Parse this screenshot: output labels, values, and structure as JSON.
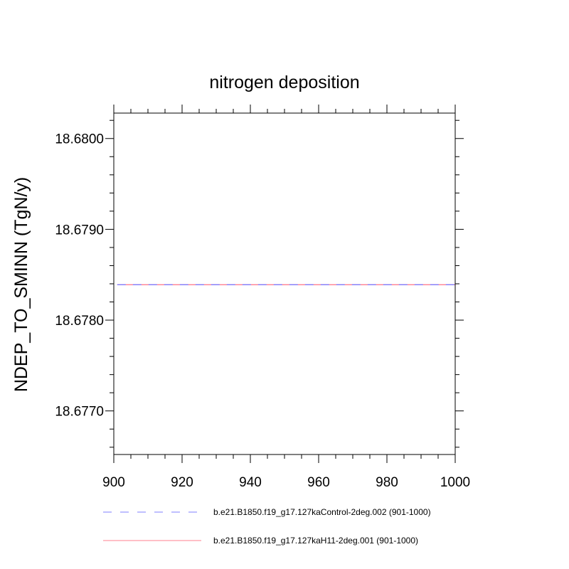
{
  "chart_data": {
    "type": "line",
    "title": "nitrogen deposition",
    "xlabel": "",
    "ylabel": "NDEP_TO_SMINN  (TgN/y)",
    "xlim": [
      900,
      1000
    ],
    "ylim": [
      18.67652,
      18.68028
    ],
    "x_ticks": [
      {
        "value": 900,
        "label": "900"
      },
      {
        "value": 920,
        "label": "920"
      },
      {
        "value": 940,
        "label": "940"
      },
      {
        "value": 960,
        "label": "960"
      },
      {
        "value": 980,
        "label": "980"
      },
      {
        "value": 1000,
        "label": "1000"
      }
    ],
    "y_ticks": [
      {
        "value": 18.677,
        "label": "18.6770"
      },
      {
        "value": 18.678,
        "label": "18.6780"
      },
      {
        "value": 18.679,
        "label": "18.6790"
      },
      {
        "value": 18.68,
        "label": "18.6800"
      }
    ],
    "y_minor_step": 0.0002,
    "grid": false,
    "legend_position": "bottom",
    "series": [
      {
        "name": "b.e21.B1850.f19_g17.127kaControl-2deg.002 (901-1000)",
        "color": "#7f7fff",
        "dash": "dashed",
        "x": [
          901,
          1000
        ],
        "y": [
          18.67839,
          18.67839
        ]
      },
      {
        "name": "b.e21.B1850.f19_g17.127kaH11-2deg.001 (901-1000)",
        "color": "#ff7f8f",
        "dash": "solid",
        "x": [
          901,
          1000
        ],
        "y": [
          18.67839,
          18.67839
        ]
      }
    ]
  }
}
